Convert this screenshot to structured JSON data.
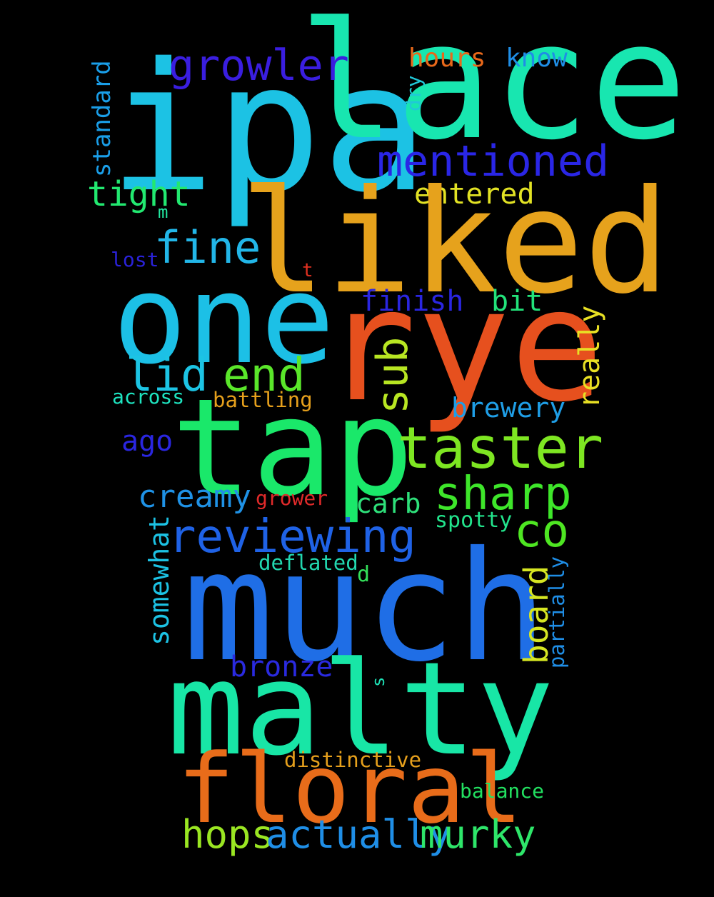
{
  "words": {
    "ipa": {
      "text": "ipa",
      "color": "#1cc2e4"
    },
    "lace": {
      "text": "lace",
      "color": "#18e6b0"
    },
    "growler": {
      "text": "growler",
      "color": "#3a1ee0"
    },
    "hours": {
      "text": "hours",
      "color": "#e8681a"
    },
    "know": {
      "text": "know",
      "color": "#1f8ee6"
    },
    "dry": {
      "text": "dry",
      "color": "#20c8d8"
    },
    "standard": {
      "text": "standard",
      "color": "#1a9ee8"
    },
    "mentioned": {
      "text": "mentioned",
      "color": "#2a26e6"
    },
    "tight": {
      "text": "tight",
      "color": "#22e870"
    },
    "entered": {
      "text": "entered",
      "color": "#e2e224"
    },
    "liked": {
      "text": "liked",
      "color": "#e6a21c"
    },
    "m": {
      "text": "m",
      "color": "#22e8a0"
    },
    "fine": {
      "text": "fine",
      "color": "#22b6e8"
    },
    "lost": {
      "text": "lost",
      "color": "#2a22d8"
    },
    "t": {
      "text": "t",
      "color": "#e03020"
    },
    "one": {
      "text": "one",
      "color": "#1cc0e6"
    },
    "finish": {
      "text": "finish",
      "color": "#2a26e0"
    },
    "bit": {
      "text": "bit",
      "color": "#22e27a"
    },
    "rye": {
      "text": "rye",
      "color": "#e6501e"
    },
    "really": {
      "text": "really",
      "color": "#e8e024"
    },
    "lid": {
      "text": "lid",
      "color": "#1cc4e4"
    },
    "end": {
      "text": "end",
      "color": "#5ae62a"
    },
    "sub": {
      "text": "sub",
      "color": "#b8e622"
    },
    "across": {
      "text": "across",
      "color": "#1ee4c0"
    },
    "battling": {
      "text": "battling",
      "color": "#e6a01c"
    },
    "brewery": {
      "text": "brewery",
      "color": "#1f9ee6"
    },
    "tap": {
      "text": "tap",
      "color": "#1ae86a"
    },
    "ago": {
      "text": "ago",
      "color": "#2a26e0"
    },
    "taster": {
      "text": "taster",
      "color": "#7ee622"
    },
    "creamy": {
      "text": "creamy",
      "color": "#1f92e6"
    },
    "grower": {
      "text": "grower",
      "color": "#e02a2a"
    },
    "sharp": {
      "text": "sharp",
      "color": "#3ee62a"
    },
    "carb": {
      "text": "carb",
      "color": "#2ee07a"
    },
    "co": {
      "text": "co",
      "color": "#4ee622"
    },
    "reviewing": {
      "text": "reviewing",
      "color": "#1f62e6"
    },
    "spotty": {
      "text": "spotty",
      "color": "#22e48c"
    },
    "somewhat": {
      "text": "somewhat",
      "color": "#1cc2e4"
    },
    "deflated": {
      "text": "deflated",
      "color": "#22d8b0"
    },
    "d": {
      "text": "d",
      "color": "#34e05a"
    },
    "much": {
      "text": "much",
      "color": "#1f6ee6"
    },
    "board": {
      "text": "board",
      "color": "#d6e622"
    },
    "partially": {
      "text": "partially",
      "color": "#1f8ee6"
    },
    "bronze": {
      "text": "bronze",
      "color": "#2a2ae0"
    },
    "s": {
      "text": "s",
      "color": "#1ee4b8"
    },
    "malty": {
      "text": "malty",
      "color": "#18e6a6"
    },
    "distinctive": {
      "text": "distinctive",
      "color": "#e6a01c"
    },
    "floral": {
      "text": "floral",
      "color": "#e86c1a"
    },
    "balance": {
      "text": "balance",
      "color": "#22e060"
    },
    "hops": {
      "text": "hops",
      "color": "#9ae622"
    },
    "actually": {
      "text": "actually",
      "color": "#1f8ee6"
    },
    "murky": {
      "text": "murky",
      "color": "#2ee66a"
    }
  }
}
